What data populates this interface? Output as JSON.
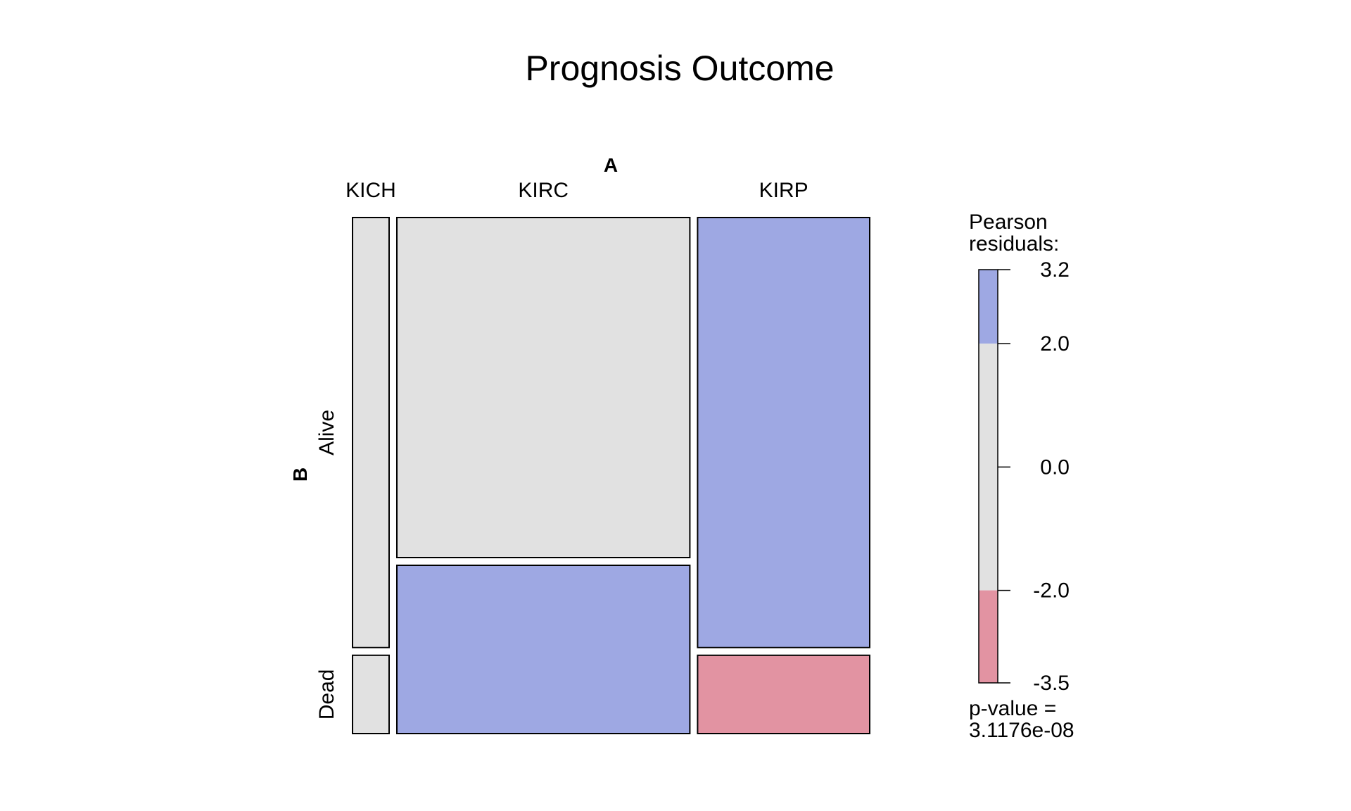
{
  "chart_data": {
    "type": "mosaic",
    "title": "Prognosis Outcome",
    "x_variable": "A",
    "y_variable": "B",
    "x_levels": [
      "KICH",
      "KIRC",
      "KIRP"
    ],
    "y_levels": [
      "Alive",
      "Dead"
    ],
    "column_proportions": [
      0.073,
      0.584,
      0.343
    ],
    "cells": [
      {
        "a": "KICH",
        "b": "Alive",
        "within_column_share": 0.846,
        "fill": "#e1e1e1"
      },
      {
        "a": "KICH",
        "b": "Dead",
        "within_column_share": 0.154,
        "fill": "#e1e1e1"
      },
      {
        "a": "KIRC",
        "b": "Alive",
        "within_column_share": 0.669,
        "fill": "#e1e1e1"
      },
      {
        "a": "KIRC",
        "b": "Dead",
        "within_column_share": 0.331,
        "fill": "#9ea8e3"
      },
      {
        "a": "KIRP",
        "b": "Alive",
        "within_column_share": 0.846,
        "fill": "#9ea8e3"
      },
      {
        "a": "KIRP",
        "b": "Dead",
        "within_column_share": 0.154,
        "fill": "#e293a2"
      }
    ],
    "legend": {
      "title_line1": "Pearson",
      "title_line2": "residuals:",
      "min": -3.5,
      "max": 3.2,
      "ticks": [
        {
          "value": 3.2,
          "label": "3.2"
        },
        {
          "value": 2.0,
          "label": "2.0"
        },
        {
          "value": 0.0,
          "label": "0.0"
        },
        {
          "value": -2.0,
          "label": "-2.0"
        },
        {
          "value": -3.5,
          "label": "-3.5"
        }
      ],
      "bands": [
        {
          "from": 2.0,
          "to": 3.2,
          "color": "#9ea8e3"
        },
        {
          "from": -2.0,
          "to": 2.0,
          "color": "#e1e1e1"
        },
        {
          "from": -3.5,
          "to": -2.0,
          "color": "#e293a2"
        }
      ],
      "pvalue_line1": "p-value =",
      "pvalue_line2": "3.1176e-08"
    }
  }
}
